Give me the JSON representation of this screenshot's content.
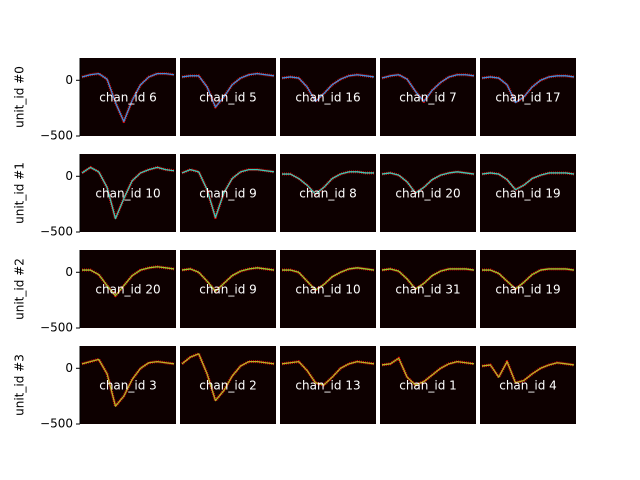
{
  "chart_data": [
    {
      "type": "line",
      "ylabel": "unit_id #0",
      "color": "#3d8fd8",
      "ylim": [
        -500,
        200
      ],
      "yticks": [
        {
          "value": -500,
          "label": "−500"
        },
        0
      ],
      "panels": [
        {
          "label": "chan_id 6",
          "values": [
            30,
            50,
            60,
            10,
            -200,
            -370,
            -180,
            -40,
            30,
            60,
            60,
            50
          ]
        },
        {
          "label": "chan_id 5",
          "values": [
            30,
            40,
            40,
            -60,
            -240,
            -150,
            -40,
            20,
            50,
            60,
            50,
            40
          ]
        },
        {
          "label": "chan_id 16",
          "values": [
            20,
            30,
            20,
            -60,
            -190,
            -120,
            -40,
            10,
            40,
            50,
            40,
            30
          ]
        },
        {
          "label": "chan_id 7",
          "values": [
            20,
            40,
            50,
            10,
            -100,
            -190,
            -90,
            -20,
            30,
            50,
            50,
            40
          ]
        },
        {
          "label": "chan_id 17",
          "values": [
            20,
            30,
            20,
            -40,
            -200,
            -150,
            -60,
            0,
            30,
            40,
            40,
            30
          ]
        }
      ]
    },
    {
      "type": "line",
      "ylabel": "unit_id #1",
      "color": "#3cc8b4",
      "ylim": [
        -500,
        200
      ],
      "yticks": [
        {
          "value": -500,
          "label": "−500"
        },
        0
      ],
      "panels": [
        {
          "label": "chan_id 10",
          "values": [
            30,
            80,
            40,
            -100,
            -380,
            -200,
            -40,
            30,
            60,
            80,
            60,
            50
          ]
        },
        {
          "label": "chan_id 9",
          "values": [
            30,
            60,
            40,
            -120,
            -370,
            -150,
            -20,
            40,
            60,
            60,
            50,
            40
          ]
        },
        {
          "label": "chan_id 8",
          "values": [
            20,
            20,
            -20,
            -80,
            -160,
            -100,
            -20,
            20,
            40,
            40,
            30,
            30
          ]
        },
        {
          "label": "chan_id 20",
          "values": [
            20,
            30,
            10,
            -50,
            -150,
            -100,
            -30,
            10,
            30,
            40,
            30,
            20
          ]
        },
        {
          "label": "chan_id 19",
          "values": [
            20,
            30,
            20,
            -30,
            -120,
            -80,
            -20,
            10,
            30,
            30,
            30,
            20
          ]
        }
      ]
    },
    {
      "type": "line",
      "ylabel": "unit_id #2",
      "color": "#98c832",
      "ylim": [
        -500,
        200
      ],
      "yticks": [
        {
          "value": -500,
          "label": "−500"
        },
        0
      ],
      "panels": [
        {
          "label": "chan_id 20",
          "values": [
            20,
            20,
            -20,
            -120,
            -210,
            -120,
            -30,
            20,
            40,
            50,
            40,
            30
          ]
        },
        {
          "label": "chan_id 9",
          "values": [
            20,
            30,
            0,
            -80,
            -170,
            -100,
            -30,
            10,
            30,
            40,
            30,
            20
          ]
        },
        {
          "label": "chan_id 10",
          "values": [
            20,
            20,
            0,
            -80,
            -160,
            -110,
            -40,
            0,
            30,
            40,
            30,
            20
          ]
        },
        {
          "label": "chan_id 31",
          "values": [
            20,
            30,
            10,
            -60,
            -150,
            -100,
            -30,
            10,
            30,
            30,
            30,
            20
          ]
        },
        {
          "label": "chan_id 19",
          "values": [
            20,
            20,
            -10,
            -80,
            -150,
            -90,
            -20,
            20,
            30,
            30,
            30,
            20
          ]
        }
      ]
    },
    {
      "type": "line",
      "ylabel": "unit_id #3",
      "color": "#b4b428",
      "ylim": [
        -500,
        200
      ],
      "yticks": [
        {
          "value": -500,
          "label": "−500"
        },
        0
      ],
      "panels": [
        {
          "label": "chan_id 3",
          "values": [
            40,
            60,
            80,
            -50,
            -340,
            -250,
            -100,
            0,
            50,
            60,
            50,
            40
          ]
        },
        {
          "label": "chan_id 2",
          "values": [
            40,
            100,
            130,
            -50,
            -290,
            -200,
            -70,
            20,
            60,
            60,
            50,
            40
          ]
        },
        {
          "label": "chan_id 13",
          "values": [
            40,
            50,
            60,
            -20,
            -130,
            -150,
            -80,
            0,
            40,
            60,
            50,
            40
          ]
        },
        {
          "label": "chan_id 1",
          "values": [
            30,
            40,
            90,
            -80,
            -150,
            -120,
            -60,
            0,
            40,
            60,
            50,
            40
          ]
        },
        {
          "label": "chan_id 4",
          "values": [
            20,
            30,
            -80,
            60,
            -130,
            -110,
            -50,
            0,
            30,
            50,
            40,
            30
          ]
        }
      ]
    }
  ]
}
